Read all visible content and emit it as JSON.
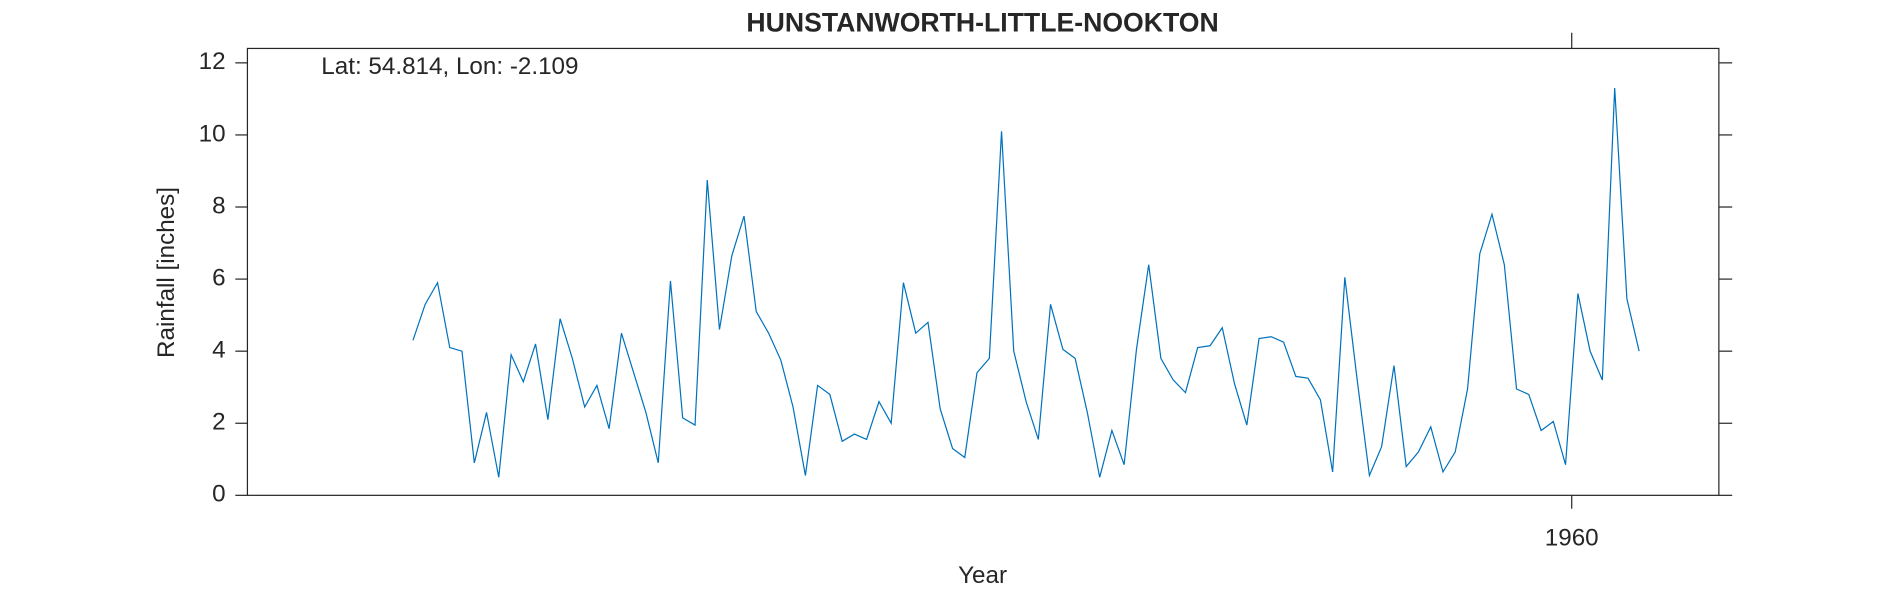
{
  "chart_data": {
    "type": "line",
    "title": "HUNSTANWORTH-LITTLE-NOOKTON",
    "annotation": "Lat: 54.814, Lon: -2.109",
    "xlabel": "Year",
    "ylabel": "Rainfall [inches]",
    "xlim": [
      1951,
      1961
    ],
    "xticks": [
      1960
    ],
    "ylim": [
      0,
      12.4
    ],
    "yticks": [
      0,
      2,
      4,
      6,
      8,
      10,
      12
    ],
    "x": [
      1952.125,
      1952.208,
      1952.292,
      1952.375,
      1952.458,
      1952.542,
      1952.625,
      1952.708,
      1952.792,
      1952.875,
      1952.958,
      1953.042,
      1953.125,
      1953.208,
      1953.292,
      1953.375,
      1953.458,
      1953.542,
      1953.625,
      1953.708,
      1953.792,
      1953.875,
      1953.958,
      1954.042,
      1954.125,
      1954.208,
      1954.292,
      1954.375,
      1954.458,
      1954.542,
      1954.625,
      1954.708,
      1954.792,
      1954.875,
      1954.958,
      1955.042,
      1955.125,
      1955.208,
      1955.292,
      1955.375,
      1955.458,
      1955.542,
      1955.625,
      1955.708,
      1955.792,
      1955.875,
      1955.958,
      1956.042,
      1956.125,
      1956.208,
      1956.292,
      1956.375,
      1956.458,
      1956.542,
      1956.625,
      1956.708,
      1956.792,
      1956.875,
      1956.958,
      1957.042,
      1957.125,
      1957.208,
      1957.292,
      1957.375,
      1957.458,
      1957.542,
      1957.625,
      1957.708,
      1957.792,
      1957.875,
      1957.958,
      1958.042,
      1958.125,
      1958.208,
      1958.292,
      1958.375,
      1958.458,
      1958.542,
      1958.625,
      1958.708,
      1958.792,
      1958.875,
      1958.958,
      1959.042,
      1959.125,
      1959.208,
      1959.292,
      1959.375,
      1959.458,
      1959.542,
      1959.625,
      1959.708,
      1959.792,
      1959.875,
      1959.958,
      1960.042,
      1960.125,
      1960.208,
      1960.292,
      1960.375,
      1960.458
    ],
    "series": [
      {
        "color": "#0072bd",
        "values": [
          4.3,
          5.3,
          5.9,
          4.1,
          4.0,
          0.9,
          2.3,
          0.5,
          3.9,
          3.15,
          4.2,
          2.1,
          4.9,
          3.8,
          2.45,
          3.05,
          1.85,
          4.5,
          3.4,
          2.3,
          0.9,
          5.95,
          2.15,
          1.95,
          8.75,
          4.6,
          6.65,
          7.75,
          5.1,
          4.5,
          3.75,
          2.45,
          0.55,
          3.05,
          2.8,
          1.5,
          1.7,
          1.55,
          2.6,
          2.0,
          5.9,
          4.5,
          4.8,
          2.4,
          1.3,
          1.05,
          3.4,
          3.8,
          10.1,
          4.0,
          2.6,
          1.55,
          5.3,
          4.05,
          3.8,
          2.3,
          0.5,
          1.8,
          0.85,
          4.05,
          6.4,
          3.8,
          3.2,
          2.85,
          4.1,
          4.15,
          4.65,
          3.1,
          1.95,
          4.35,
          4.4,
          4.25,
          3.3,
          3.25,
          2.65,
          0.65,
          6.05,
          3.2,
          0.55,
          1.35,
          3.6,
          0.8,
          1.2,
          1.9,
          0.65,
          1.2,
          2.95,
          6.7,
          7.8,
          6.4,
          2.95,
          2.8,
          1.8,
          2.05,
          0.85,
          5.6,
          4.0,
          3.2,
          11.3,
          5.45,
          4.0
        ]
      }
    ]
  }
}
